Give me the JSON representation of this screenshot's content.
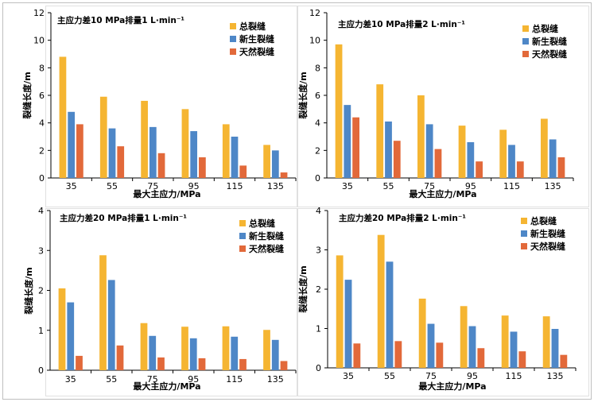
{
  "colors": {
    "total": "#F5B532",
    "new": "#4E87C7",
    "natural": "#E2693A",
    "axis": "#000000",
    "frame": "#bfbfbf"
  },
  "chart_data": [
    {
      "type": "bar",
      "annotation": "主应力差10 MPa排量1 L·min⁻¹",
      "xlabel": "最大主应力/MPa",
      "ylabel": "裂缝长度/m",
      "categories": [
        "35",
        "55",
        "75",
        "95",
        "115",
        "135"
      ],
      "ylim": [
        0,
        12
      ],
      "yticks": [
        0,
        2,
        4,
        6,
        8,
        10,
        12
      ],
      "legend_position": "top-right",
      "series": [
        {
          "name": "总裂缝",
          "color_key": "total",
          "values": [
            8.8,
            5.9,
            5.6,
            5.0,
            3.9,
            2.4
          ]
        },
        {
          "name": "新生裂缝",
          "color_key": "new",
          "values": [
            4.8,
            3.6,
            3.7,
            3.4,
            3.0,
            2.0
          ]
        },
        {
          "name": "天然裂缝",
          "color_key": "natural",
          "values": [
            3.9,
            2.3,
            1.8,
            1.5,
            0.9,
            0.4
          ]
        }
      ]
    },
    {
      "type": "bar",
      "annotation": "主应力差10 MPa排量2 L·min⁻¹",
      "xlabel": "最大主应力/MPa",
      "ylabel": "裂缝长度/m",
      "categories": [
        "35",
        "55",
        "75",
        "95",
        "115",
        "135"
      ],
      "ylim": [
        0,
        12
      ],
      "yticks": [
        0,
        2,
        4,
        6,
        8,
        10,
        12
      ],
      "legend_position": "top-right",
      "series": [
        {
          "name": "总裂缝",
          "color_key": "total",
          "values": [
            9.7,
            6.8,
            6.0,
            3.8,
            3.5,
            4.3
          ]
        },
        {
          "name": "新生裂缝",
          "color_key": "new",
          "values": [
            5.3,
            4.1,
            3.9,
            2.6,
            2.4,
            2.8
          ]
        },
        {
          "name": "天然裂缝",
          "color_key": "natural",
          "values": [
            4.4,
            2.7,
            2.1,
            1.2,
            1.2,
            1.5
          ]
        }
      ]
    },
    {
      "type": "bar",
      "annotation": "主应力差20 MPa排量1 L·min⁻¹",
      "xlabel": "最大主应力/MPa",
      "ylabel": "裂缝长度/m",
      "categories": [
        "35",
        "55",
        "75",
        "95",
        "115",
        "135"
      ],
      "ylim": [
        0,
        4
      ],
      "yticks": [
        0,
        1,
        2,
        3,
        4
      ],
      "legend_position": "top-right",
      "series": [
        {
          "name": "总裂缝",
          "color_key": "total",
          "values": [
            2.05,
            2.88,
            1.18,
            1.09,
            1.1,
            1.01
          ]
        },
        {
          "name": "新生裂缝",
          "color_key": "new",
          "values": [
            1.7,
            2.26,
            0.86,
            0.8,
            0.84,
            0.76
          ]
        },
        {
          "name": "天然裂缝",
          "color_key": "natural",
          "values": [
            0.36,
            0.62,
            0.32,
            0.3,
            0.28,
            0.23
          ]
        }
      ]
    },
    {
      "type": "bar",
      "annotation": "主应力差20 MPa排量2 L·min⁻¹",
      "xlabel": "最大主应力/MPa",
      "ylabel": "裂缝长度/m",
      "categories": [
        "35",
        "55",
        "75",
        "95",
        "115",
        "135"
      ],
      "ylim": [
        0,
        4
      ],
      "yticks": [
        0,
        1,
        2,
        3,
        4
      ],
      "legend_position": "top-right",
      "series": [
        {
          "name": "总裂缝",
          "color_key": "total",
          "values": [
            2.86,
            3.38,
            1.76,
            1.57,
            1.33,
            1.31
          ]
        },
        {
          "name": "新生裂缝",
          "color_key": "new",
          "values": [
            2.24,
            2.7,
            1.12,
            1.06,
            0.92,
            0.99
          ]
        },
        {
          "name": "天然裂缝",
          "color_key": "natural",
          "values": [
            0.62,
            0.68,
            0.64,
            0.5,
            0.42,
            0.33
          ]
        }
      ]
    }
  ]
}
